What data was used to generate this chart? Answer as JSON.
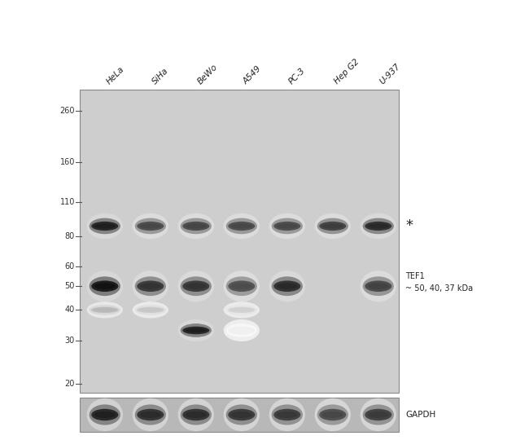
{
  "cell_lines": [
    "HeLa",
    "SiHa",
    "BeWo",
    "A549",
    "PC-3",
    "Hep G2",
    "U-937"
  ],
  "mw_markers": [
    260,
    160,
    110,
    80,
    60,
    50,
    40,
    30,
    20
  ],
  "main_bg": "#c8c8c8",
  "gapdh_bg": "#b8b8b8",
  "band_90_intensities": [
    0.88,
    0.72,
    0.73,
    0.72,
    0.72,
    0.76,
    0.84
  ],
  "band_50_intensities": [
    0.93,
    0.8,
    0.8,
    0.7,
    0.84,
    0.0,
    0.74
  ],
  "band_40_intensities": [
    0.28,
    0.22,
    0.0,
    0.18,
    0.0,
    0.0,
    0.0
  ],
  "band_33_intensities": [
    0.0,
    0.0,
    0.88,
    0.06,
    0.0,
    0.0,
    0.0
  ],
  "band_gapdh_intensities": [
    0.88,
    0.83,
    0.83,
    0.8,
    0.78,
    0.72,
    0.77
  ],
  "label_color": "#222222",
  "marker_color": "#333333"
}
